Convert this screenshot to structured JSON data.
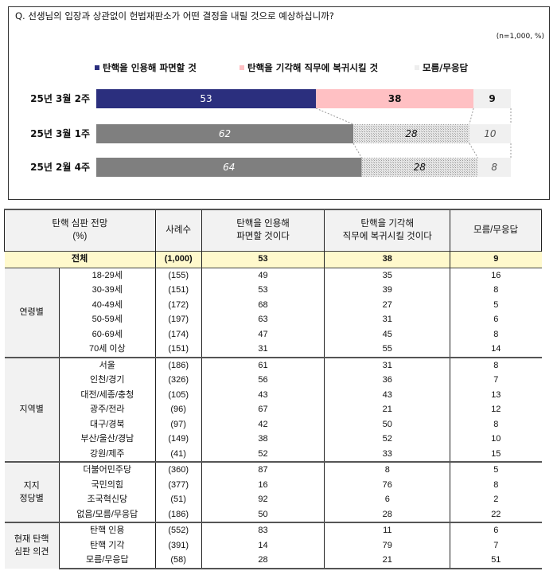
{
  "chart_data": {
    "type": "bar",
    "orientation": "horizontal-stacked",
    "title": "Q. 선생님의 입장과 상관없이 헌법재판소가 어떤 결정을 내릴 것으로 예상하십니까?",
    "unit_note": "(n=1,000, %)",
    "categories": [
      "25년 3월 2주",
      "25년 3월 1주",
      "25년 2월 4주"
    ],
    "series": [
      {
        "name": "탄핵을 인용해 파면할 것",
        "values": [
          53,
          62,
          64
        ],
        "color": "#2b2f7e"
      },
      {
        "name": "탄핵을 기각해 직무에 복귀시킬 것",
        "values": [
          38,
          28,
          28
        ],
        "color": "#ffc0c3"
      },
      {
        "name": "모름/무응답",
        "values": [
          9,
          10,
          8
        ],
        "color": "#f0f0f0"
      }
    ],
    "past_colors": [
      "#7f7f7f",
      "#cfcfcf",
      "#f0f0f0"
    ],
    "xlim": [
      0,
      100
    ],
    "legend": "top"
  },
  "table": {
    "headers": [
      "탄핵 심판 전망\n(%)",
      "사례수",
      "탄핵을 인용해\n파면할 것이다",
      "탄핵을 기각해\n직무에 복귀시킬 것이다",
      "모름/무응답"
    ],
    "total": {
      "label": "전체",
      "n": "(1,000)",
      "v": [
        "53",
        "38",
        "9"
      ]
    },
    "groups": [
      {
        "name": "연령별",
        "rows": [
          [
            "18-29세",
            "(155)",
            "49",
            "35",
            "16"
          ],
          [
            "30-39세",
            "(151)",
            "53",
            "39",
            "8"
          ],
          [
            "40-49세",
            "(172)",
            "68",
            "27",
            "5"
          ],
          [
            "50-59세",
            "(197)",
            "63",
            "31",
            "6"
          ],
          [
            "60-69세",
            "(174)",
            "47",
            "45",
            "8"
          ],
          [
            "70세 이상",
            "(151)",
            "31",
            "55",
            "14"
          ]
        ]
      },
      {
        "name": "지역별",
        "rows": [
          [
            "서울",
            "(186)",
            "61",
            "31",
            "8"
          ],
          [
            "인천/경기",
            "(326)",
            "56",
            "36",
            "7"
          ],
          [
            "대전/세종/충청",
            "(105)",
            "43",
            "43",
            "13"
          ],
          [
            "광주/전라",
            "(96)",
            "67",
            "21",
            "12"
          ],
          [
            "대구/경북",
            "(97)",
            "42",
            "50",
            "8"
          ],
          [
            "부산/울산/경남",
            "(149)",
            "38",
            "52",
            "10"
          ],
          [
            "강원/제주",
            "(41)",
            "52",
            "33",
            "15"
          ]
        ]
      },
      {
        "name": "지지\n정당별",
        "rows": [
          [
            "더불어민주당",
            "(360)",
            "87",
            "8",
            "5"
          ],
          [
            "국민의힘",
            "(377)",
            "16",
            "76",
            "8"
          ],
          [
            "조국혁신당",
            "(51)",
            "92",
            "6",
            "2"
          ],
          [
            "없음/모름/무응답",
            "(186)",
            "50",
            "28",
            "22"
          ]
        ]
      },
      {
        "name": "현재 탄핵\n심판 의견",
        "rows": [
          [
            "탄핵 인용",
            "(552)",
            "83",
            "11",
            "6"
          ],
          [
            "탄핵 기각",
            "(391)",
            "14",
            "79",
            "7"
          ],
          [
            "모름/무응답",
            "(58)",
            "28",
            "21",
            "51"
          ]
        ]
      }
    ]
  }
}
